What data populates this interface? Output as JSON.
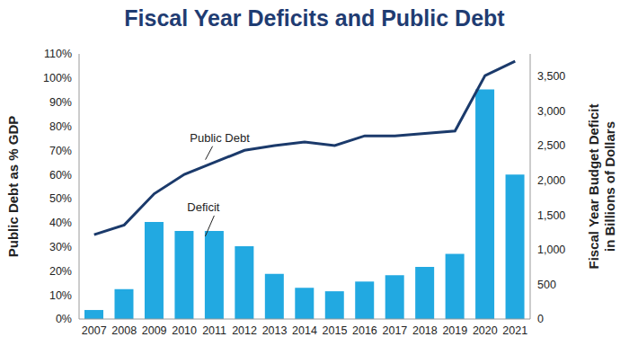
{
  "chart_data": {
    "type": "bar_line",
    "title": "Fiscal Year Deficits and Public Debt",
    "categories": [
      "2007",
      "2008",
      "2009",
      "2010",
      "2011",
      "2012",
      "2013",
      "2014",
      "2015",
      "2016",
      "2017",
      "2018",
      "2019",
      "2020",
      "2021"
    ],
    "series": [
      {
        "name": "Deficit",
        "type": "bar",
        "axis": "y2",
        "color": "#22a9e1",
        "values": [
          130,
          430,
          1400,
          1270,
          1270,
          1050,
          650,
          450,
          400,
          540,
          630,
          750,
          940,
          3310,
          2080
        ]
      },
      {
        "name": "Public Debt",
        "type": "line",
        "color": "#1b3a6b",
        "values": [
          35,
          39,
          52,
          60,
          65,
          70,
          72,
          73.5,
          72,
          76,
          76,
          77,
          78,
          101,
          107
        ]
      }
    ],
    "ylabel": "Public Debt as % GDP",
    "y2label": [
      "Fiscal Year Budget Deficit",
      "in Billions of Dollars"
    ],
    "ylim": [
      0,
      110
    ],
    "yticks": [
      {
        "value": 0,
        "label": "0%"
      },
      {
        "value": 10,
        "label": "10%"
      },
      {
        "value": 20,
        "label": "20%"
      },
      {
        "value": 30,
        "label": "30%"
      },
      {
        "value": 40,
        "label": "40%"
      },
      {
        "value": 50,
        "label": "50%"
      },
      {
        "value": 60,
        "label": "60%"
      },
      {
        "value": 70,
        "label": "70%"
      },
      {
        "value": 80,
        "label": "80%"
      },
      {
        "value": 90,
        "label": "90%"
      },
      {
        "value": 100,
        "label": "100%"
      },
      {
        "value": 110,
        "label": "110%"
      }
    ],
    "y2lim": [
      0,
      3820
    ],
    "y2ticks": [
      0,
      500,
      {
        "value": 1000,
        "label": "1,000"
      },
      {
        "value": 1500,
        "label": "1,500"
      },
      {
        "value": 2000,
        "label": "2,000"
      },
      {
        "value": 2500,
        "label": "2,500"
      },
      {
        "value": 3000,
        "label": "3,000"
      },
      {
        "value": 3500,
        "label": "3,500"
      }
    ],
    "grid": false
  }
}
